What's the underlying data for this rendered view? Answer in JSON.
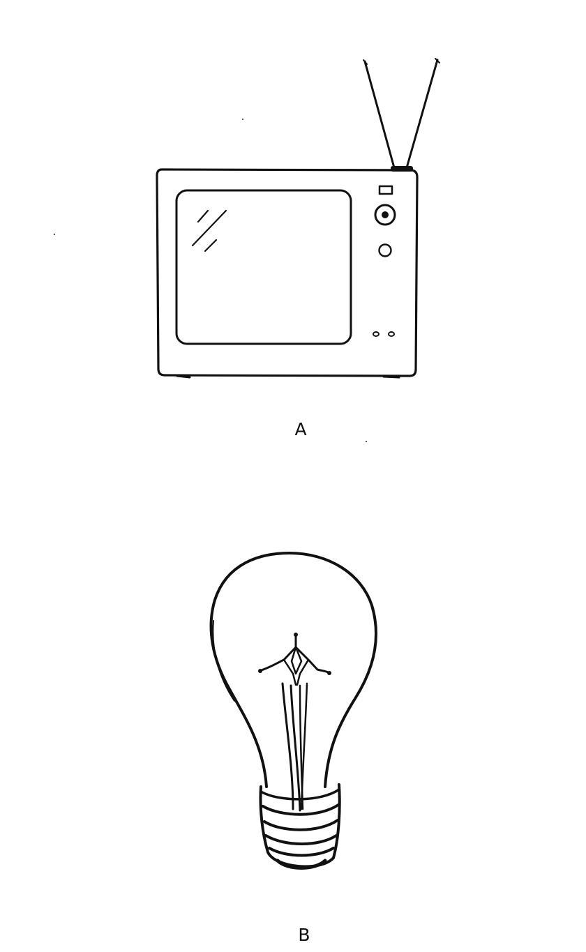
{
  "figures": [
    {
      "label": "A",
      "icon": "television-icon"
    },
    {
      "label": "B",
      "icon": "light-bulb-icon"
    }
  ],
  "colors": {
    "ink": "#111111",
    "background": "#ffffff"
  }
}
